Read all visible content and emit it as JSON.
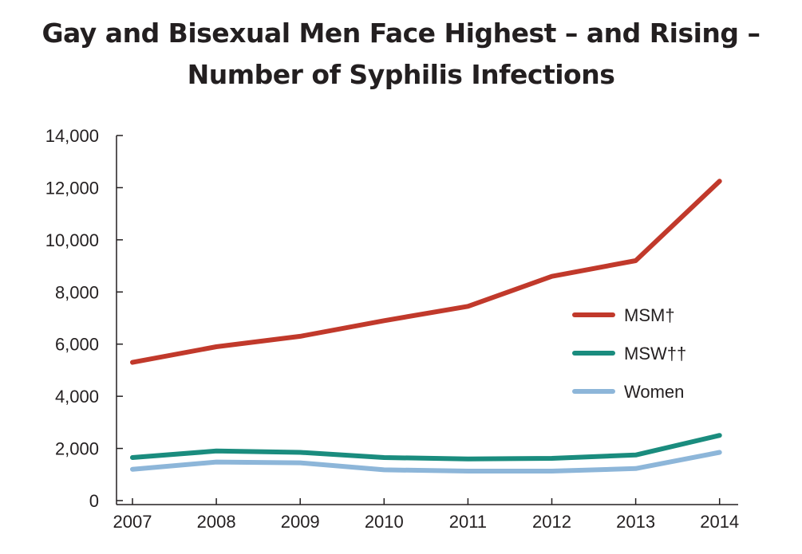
{
  "chart_data": {
    "type": "line",
    "title_line1": "Gay and Bisexual Men Face Highest – and Rising –",
    "title_line2": "Number of Syphilis Infections",
    "x": [
      "2007",
      "2008",
      "2009",
      "2010",
      "2011",
      "2012",
      "2013",
      "2014"
    ],
    "ylim": [
      0,
      14000
    ],
    "yticks": [
      "0",
      "2,000",
      "4,000",
      "6,000",
      "8,000",
      "10,000",
      "12,000",
      "14,000"
    ],
    "ytick_values": [
      0,
      2000,
      4000,
      6000,
      8000,
      10000,
      12000,
      14000
    ],
    "grid": false,
    "legend_position": "right",
    "series": [
      {
        "name": "MSM†",
        "color": "#c1392b",
        "values": [
          5300,
          5900,
          6300,
          6900,
          7450,
          8600,
          9200,
          12250
        ]
      },
      {
        "name": "MSW††",
        "color": "#1a8c7e",
        "values": [
          1650,
          1900,
          1850,
          1650,
          1600,
          1620,
          1750,
          2500
        ]
      },
      {
        "name": "Women",
        "color": "#8db6d9",
        "values": [
          1200,
          1480,
          1450,
          1180,
          1130,
          1130,
          1230,
          1850
        ]
      }
    ]
  }
}
